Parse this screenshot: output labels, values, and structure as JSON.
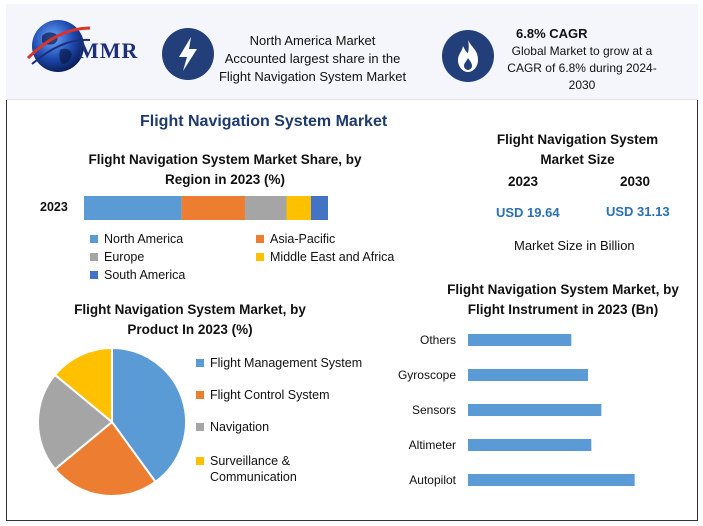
{
  "header": {
    "logo_text": "MMR",
    "region_text_lines": [
      "North America Market",
      "Accounted largest share in the",
      "Flight Navigation System Market"
    ],
    "cagr_title": "6.8% CAGR",
    "cagr_text_lines": [
      "Global Market to grow at a",
      "CAGR of 6.8% during 2024-",
      "2030"
    ]
  },
  "main_title": "Flight Navigation System Market",
  "market_size": {
    "title_lines": [
      "Flight Navigation System",
      "Market Size"
    ],
    "year1": "2023",
    "year2": "2030",
    "value1": "USD 19.64",
    "value2": "USD 31.13",
    "unit_note": "Market Size in Billion"
  },
  "colors": {
    "blue": "#5b9bd5",
    "orange": "#ed7d31",
    "gray": "#a5a5a5",
    "yellow": "#ffc000",
    "darkblue": "#4472c4",
    "title_blue": "#1f3a6e",
    "value_blue": "#2a6fb8"
  },
  "icons": {
    "lightning": "lightning-icon",
    "flame": "flame-icon",
    "globe": "globe-icon"
  },
  "chart_data": [
    {
      "type": "bar",
      "orientation": "horizontal-stacked",
      "title_lines": [
        "Flight Navigation System Market Share, by",
        "Region in 2023 (%)"
      ],
      "categories": [
        "2023"
      ],
      "series": [
        {
          "name": "North America",
          "values": [
            40
          ],
          "color": "#5b9bd5"
        },
        {
          "name": "Asia-Pacific",
          "values": [
            26
          ],
          "color": "#ed7d31"
        },
        {
          "name": "Europe",
          "values": [
            17
          ],
          "color": "#a5a5a5"
        },
        {
          "name": "Middle East and Africa",
          "values": [
            10
          ],
          "color": "#ffc000"
        },
        {
          "name": "South America",
          "values": [
            7
          ],
          "color": "#4472c4"
        }
      ],
      "legend": "bottom"
    },
    {
      "type": "pie",
      "title_lines": [
        "Flight Navigation System Market, by",
        "Product In 2023 (%)"
      ],
      "slices": [
        {
          "name": "Flight Management System",
          "value": 40,
          "color": "#5b9bd5"
        },
        {
          "name": "Flight Control System",
          "value": 24,
          "color": "#ed7d31"
        },
        {
          "name": "Navigation",
          "value": 22,
          "color": "#a5a5a5"
        },
        {
          "name": "Surveillance & Communication",
          "label_lines": [
            "Surveillance &",
            "Communication"
          ],
          "value": 14,
          "color": "#ffc000"
        }
      ],
      "legend": "right"
    },
    {
      "type": "bar",
      "orientation": "horizontal",
      "title_lines": [
        "Flight Navigation System Market, by",
        "Flight Instrument in 2023 (Bn)"
      ],
      "categories": [
        "Others",
        "Gyroscope",
        "Sensors",
        "Altimeter",
        "Autopilot"
      ],
      "values": [
        3.1,
        3.6,
        4.0,
        3.7,
        5.0
      ],
      "xlim": [
        0,
        6
      ],
      "color": "#5b9bd5"
    }
  ]
}
